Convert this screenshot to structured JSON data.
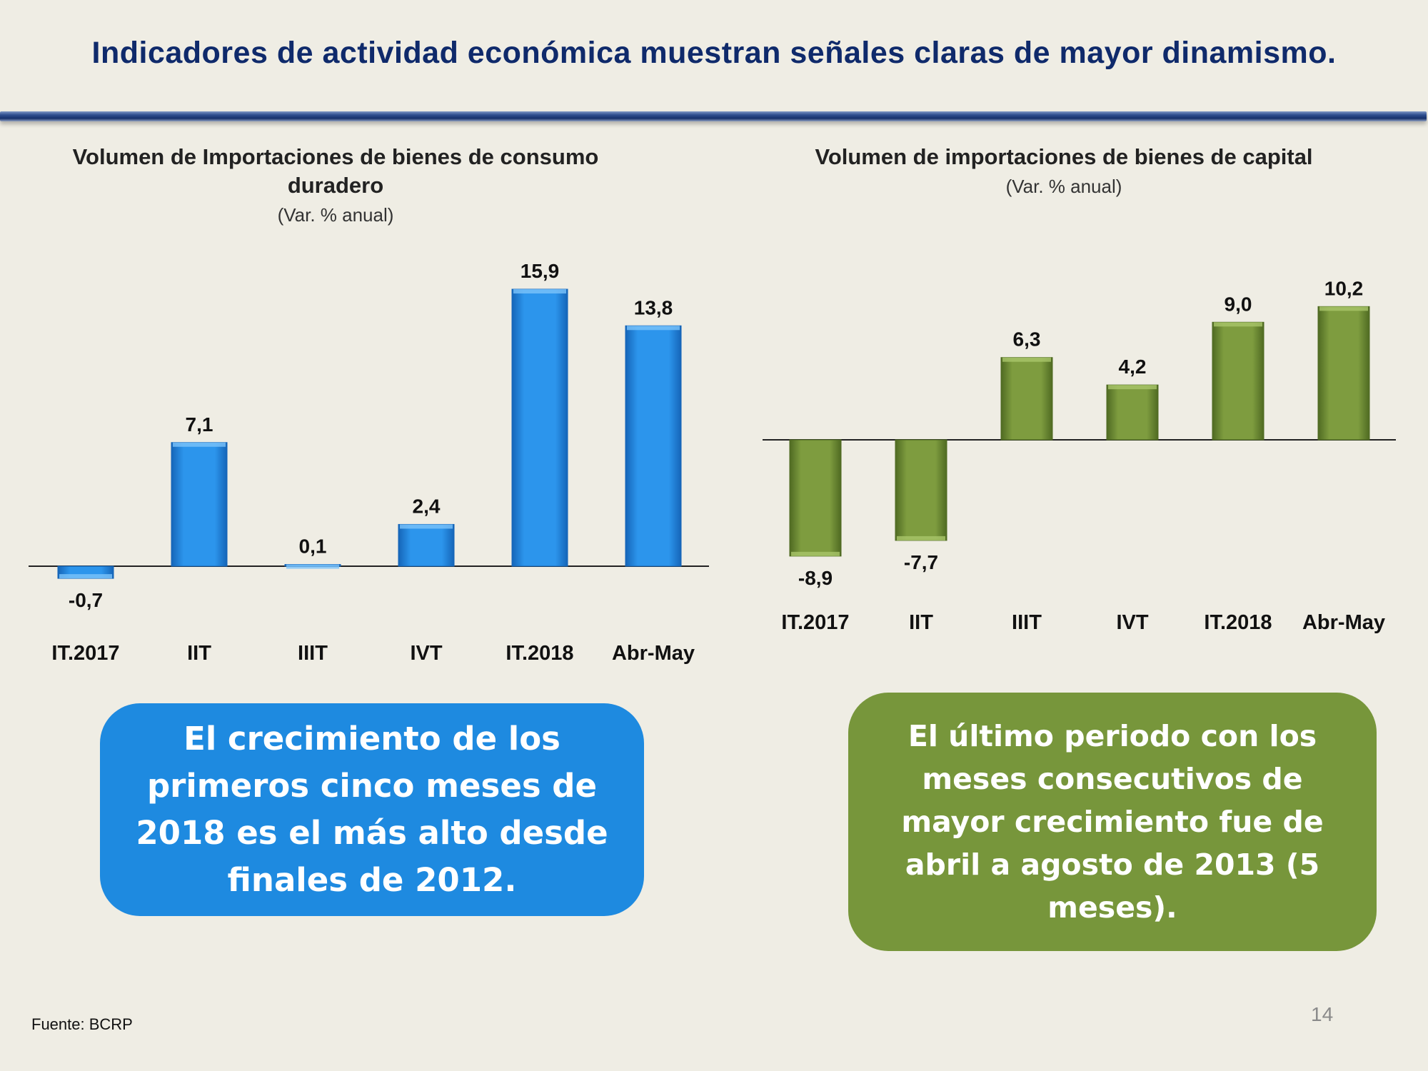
{
  "slide": {
    "title": "Indicadores de actividad económica muestran señales claras de mayor dinamismo.",
    "source": "Fuente: BCRP",
    "page_number": "14"
  },
  "colors": {
    "title": "#0F2A6B",
    "bar_blue": "#1E8AE0",
    "bar_green": "#77963B",
    "background": "#EFEDE4"
  },
  "chart_data": [
    {
      "type": "bar",
      "title": "Volumen de Importaciones de bienes de consumo duradero",
      "subtitle": "(Var. % anual)",
      "categories": [
        "IT.2017",
        "IIT",
        "IIIT",
        "IVT",
        "IT.2018",
        "Abr-May"
      ],
      "values": [
        -0.7,
        7.1,
        0.1,
        2.4,
        15.9,
        13.8
      ],
      "labels": [
        "-0,7",
        "7,1",
        "0,1",
        "2,4",
        "15,9",
        "13,8"
      ],
      "ylim": [
        -1,
        17
      ],
      "grid": false,
      "legend": "none"
    },
    {
      "type": "bar",
      "title": "Volumen de importaciones de bienes de capital",
      "subtitle": "(Var. % anual)",
      "categories": [
        "IT.2017",
        "IIT",
        "IIIT",
        "IVT",
        "IT.2018",
        "Abr-May"
      ],
      "values": [
        -8.9,
        -7.7,
        6.3,
        4.2,
        9.0,
        10.2
      ],
      "labels": [
        "-8,9",
        "-7,7",
        "6,3",
        "4,2",
        "9,0",
        "10,2"
      ],
      "ylim": [
        -10,
        12
      ],
      "grid": false,
      "legend": "none"
    }
  ],
  "callouts": {
    "left": "El crecimiento de los primeros cinco meses de 2018 es el más alto desde finales de 2012.",
    "right": "El último periodo con los meses consecutivos de mayor crecimiento fue de abril a agosto de 2013 (5 meses)."
  }
}
